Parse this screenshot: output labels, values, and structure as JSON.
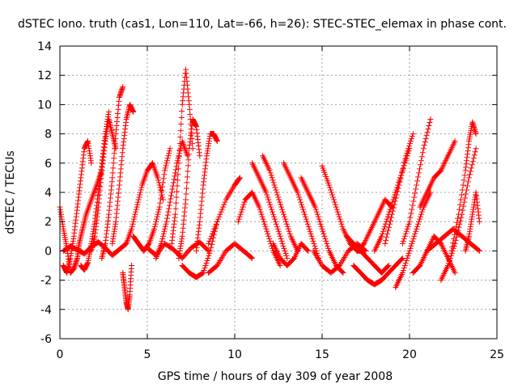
{
  "chart_data": {
    "type": "scatter",
    "title": "dSTEC Iono. truth (cas1, Lon=110, Lat=-66, h=26): STEC-STEC_elemax in phase cont.",
    "xlabel": "GPS time / hours of day 309 of year 2008",
    "ylabel": "dSTEC  / TECUs",
    "xlim": [
      0,
      25
    ],
    "ylim": [
      -6,
      14
    ],
    "xticks": [
      "0",
      "5",
      "10",
      "15",
      "20",
      "25"
    ],
    "yticks": [
      "-6",
      "-4",
      "-2",
      "0",
      "2",
      "4",
      "6",
      "8",
      "10",
      "12",
      "14"
    ],
    "grid": true,
    "marker": "plus",
    "color": "#ff0000",
    "series": [
      {
        "x": [
          0.0,
          0.2,
          0.4,
          0.6,
          0.8,
          1.0,
          1.1,
          1.3,
          1.5,
          1.8,
          2.1,
          2.4
        ],
        "values": [
          3.0,
          1.5,
          0.2,
          -1.5,
          -1.2,
          -0.5,
          0.5,
          1.5,
          2.5,
          3.5,
          4.5,
          5.5
        ]
      },
      {
        "x": [
          0.2,
          0.4,
          0.6,
          0.8,
          1.0,
          1.2,
          1.4,
          1.6,
          1.8
        ],
        "values": [
          -1.0,
          -1.5,
          -0.5,
          1.0,
          3.0,
          5.0,
          7.0,
          7.5,
          6.0
        ]
      },
      {
        "x": [
          1.2,
          1.4,
          1.6,
          1.8,
          2.0,
          2.2,
          2.4,
          2.6,
          2.8
        ],
        "values": [
          -1.0,
          -1.3,
          -0.8,
          0.5,
          2.0,
          4.0,
          6.0,
          8.0,
          9.5
        ]
      },
      {
        "x": [
          1.8,
          2.0,
          2.2,
          2.4,
          2.6,
          2.8,
          3.0,
          3.2
        ],
        "values": [
          0.0,
          1.0,
          3.0,
          5.5,
          7.5,
          9.0,
          8.0,
          7.0
        ]
      },
      {
        "x": [
          2.4,
          2.6,
          2.8,
          3.0,
          3.2,
          3.4,
          3.6
        ],
        "values": [
          -0.5,
          0.5,
          2.5,
          5.0,
          8.0,
          10.5,
          11.2
        ]
      },
      {
        "x": [
          3.0,
          3.2,
          3.4,
          3.6,
          3.8,
          4.0,
          4.2
        ],
        "values": [
          0.5,
          2.0,
          4.5,
          7.0,
          9.0,
          10.0,
          9.5
        ]
      },
      {
        "x": [
          3.6,
          3.7,
          3.8,
          3.9,
          4.0,
          4.1
        ],
        "values": [
          -1.5,
          -2.5,
          -3.5,
          -4.0,
          -3.0,
          -1.0
        ]
      },
      {
        "x": [
          3.8,
          4.1,
          4.4,
          4.7,
          5.0,
          5.3,
          5.6,
          5.9
        ],
        "values": [
          0.5,
          1.5,
          3.0,
          4.5,
          5.5,
          6.0,
          5.0,
          3.5
        ]
      },
      {
        "x": [
          4.2,
          4.5,
          4.8,
          5.1,
          5.4,
          5.7,
          6.0,
          6.3
        ],
        "values": [
          1.0,
          0.5,
          0.0,
          0.5,
          1.5,
          3.0,
          5.5,
          7.0
        ]
      },
      {
        "x": [
          5.5,
          5.8,
          6.1,
          6.4,
          6.7,
          7.0,
          7.3
        ],
        "values": [
          -0.5,
          0.5,
          2.0,
          4.0,
          6.0,
          7.5,
          6.5
        ]
      },
      {
        "x": [
          6.4,
          6.6,
          6.8,
          7.0,
          7.2,
          7.4,
          7.6
        ],
        "values": [
          0.5,
          2.5,
          6.0,
          10.0,
          12.4,
          10.0,
          7.0
        ]
      },
      {
        "x": [
          6.8,
          7.0,
          7.2,
          7.4,
          7.6,
          7.8,
          8.0
        ],
        "values": [
          -0.5,
          1.0,
          3.5,
          7.0,
          9.0,
          8.5,
          6.5
        ]
      },
      {
        "x": [
          7.0,
          7.4,
          7.8,
          8.2,
          8.6,
          9.0
        ],
        "values": [
          -1.0,
          -1.5,
          -1.8,
          -1.5,
          0.0,
          2.0
        ]
      },
      {
        "x": [
          7.8,
          8.0,
          8.2,
          8.4,
          8.6,
          8.8,
          9.0
        ],
        "values": [
          0.0,
          2.0,
          4.5,
          6.5,
          8.0,
          8.0,
          7.5
        ]
      },
      {
        "x": [
          8.5,
          9.0,
          9.5,
          10.0,
          10.3
        ],
        "values": [
          0.5,
          2.0,
          3.5,
          4.5,
          5.0
        ]
      },
      {
        "x": [
          8.5,
          9.0,
          9.5,
          10.0,
          10.5,
          11.0
        ],
        "values": [
          -1.5,
          -1.0,
          0.0,
          0.5,
          0.0,
          -0.5
        ]
      },
      {
        "x": [
          10.2,
          10.6,
          11.0,
          11.4,
          11.8,
          12.2,
          12.6
        ],
        "values": [
          2.0,
          3.5,
          4.0,
          3.0,
          1.5,
          0.0,
          -1.0
        ]
      },
      {
        "x": [
          11.0,
          11.4,
          11.8,
          12.2,
          12.6,
          13.0
        ],
        "values": [
          6.0,
          5.0,
          4.0,
          2.5,
          1.0,
          -0.5
        ]
      },
      {
        "x": [
          11.6,
          12.0,
          12.4,
          12.8,
          13.2,
          13.6
        ],
        "values": [
          6.5,
          5.5,
          4.0,
          2.5,
          1.0,
          0.0
        ]
      },
      {
        "x": [
          12.2,
          12.6,
          13.0,
          13.4,
          13.8,
          14.2
        ],
        "values": [
          0.5,
          -0.5,
          -1.0,
          -0.5,
          0.5,
          0.0
        ]
      },
      {
        "x": [
          12.8,
          13.2,
          13.6,
          14.0,
          14.4,
          14.8
        ],
        "values": [
          6.0,
          5.0,
          4.0,
          2.5,
          1.0,
          -0.5
        ]
      },
      {
        "x": [
          13.8,
          14.2,
          14.6,
          15.0,
          15.4,
          15.8,
          16.2
        ],
        "values": [
          5.0,
          4.0,
          3.0,
          1.5,
          0.0,
          -1.0,
          -1.5
        ]
      },
      {
        "x": [
          15.0,
          15.4,
          15.8,
          16.2,
          16.6,
          17.0,
          17.4
        ],
        "values": [
          5.8,
          4.5,
          3.0,
          1.5,
          0.5,
          0.0,
          0.0
        ]
      },
      {
        "x": [
          14.5,
          15.0,
          15.5,
          16.0,
          16.5,
          17.0,
          17.5
        ],
        "values": [
          0.0,
          -1.0,
          -1.5,
          -1.0,
          0.0,
          0.5,
          0.0
        ]
      },
      {
        "x": [
          16.4,
          16.8,
          17.2,
          17.6,
          18.0,
          18.4,
          18.8
        ],
        "values": [
          1.0,
          0.5,
          0.0,
          -0.5,
          -1.0,
          -1.5,
          -1.0
        ]
      },
      {
        "x": [
          16.8,
          17.2,
          17.6,
          18.0,
          18.4,
          18.8,
          19.2,
          19.6
        ],
        "values": [
          -1.0,
          -1.5,
          -2.0,
          -2.3,
          -2.0,
          -1.5,
          -1.0,
          -0.5
        ]
      },
      {
        "x": [
          17.0,
          17.4,
          17.8,
          18.2,
          18.6,
          19.0
        ],
        "values": [
          0.0,
          0.5,
          1.5,
          2.5,
          3.5,
          3.0
        ]
      },
      {
        "x": [
          18.0,
          18.4,
          18.8,
          19.2,
          19.6,
          20.0
        ],
        "values": [
          0.0,
          1.0,
          2.5,
          4.0,
          5.5,
          7.0
        ]
      },
      {
        "x": [
          18.6,
          19.0,
          19.4,
          19.8,
          20.2
        ],
        "values": [
          0.5,
          2.5,
          4.5,
          6.5,
          8.0
        ]
      },
      {
        "x": [
          19.2,
          19.6,
          20.0,
          20.4,
          20.8,
          21.2
        ],
        "values": [
          -2.5,
          -1.5,
          0.0,
          1.5,
          3.0,
          4.0
        ]
      },
      {
        "x": [
          19.6,
          20.0,
          20.4,
          20.8,
          21.2
        ],
        "values": [
          0.5,
          2.0,
          4.5,
          7.0,
          9.0
        ]
      },
      {
        "x": [
          20.2,
          20.6,
          21.0,
          21.4,
          21.8,
          22.2,
          22.6
        ],
        "values": [
          -1.5,
          -1.0,
          0.0,
          1.0,
          0.5,
          -0.5,
          -1.5
        ]
      },
      {
        "x": [
          20.6,
          21.0,
          21.4,
          21.8,
          22.2,
          22.6
        ],
        "values": [
          3.0,
          4.0,
          5.0,
          5.5,
          6.5,
          7.5
        ]
      },
      {
        "x": [
          21.0,
          21.5,
          22.0,
          22.5,
          23.0,
          23.5,
          24.0
        ],
        "values": [
          0.0,
          0.5,
          1.0,
          1.5,
          1.0,
          0.5,
          0.0
        ]
      },
      {
        "x": [
          21.8,
          22.2,
          22.6,
          23.0,
          23.4,
          23.8
        ],
        "values": [
          -2.0,
          -1.0,
          0.5,
          2.5,
          5.0,
          7.0
        ]
      },
      {
        "x": [
          22.4,
          22.8,
          23.2,
          23.4,
          23.6,
          23.8
        ],
        "values": [
          0.0,
          2.5,
          5.5,
          7.5,
          8.8,
          8.0
        ]
      },
      {
        "x": [
          23.2,
          23.4,
          23.6,
          23.8,
          24.0
        ],
        "values": [
          0.0,
          1.0,
          2.5,
          4.0,
          2.0
        ]
      },
      {
        "x": [
          0.2,
          0.6,
          1.0,
          1.4,
          1.8,
          2.2,
          2.6,
          3.0,
          3.4,
          3.8
        ],
        "values": [
          0.0,
          0.3,
          0.1,
          -0.2,
          0.3,
          0.6,
          0.2,
          -0.3,
          0.1,
          0.5
        ]
      },
      {
        "x": [
          5.0,
          5.5,
          6.0,
          6.5,
          7.0,
          7.5,
          8.0,
          8.5
        ],
        "values": [
          0.2,
          -0.3,
          0.5,
          0.1,
          -0.5,
          0.2,
          0.6,
          0.0
        ]
      }
    ]
  }
}
